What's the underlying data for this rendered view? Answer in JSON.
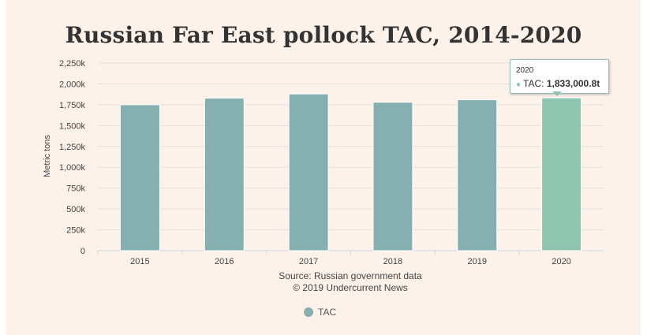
{
  "chart_data": {
    "type": "bar",
    "title": "Russian Far East pollock TAC, 2014-2020",
    "xlabel": "",
    "ylabel": "Metric tons",
    "categories": [
      "2015",
      "2016",
      "2017",
      "2018",
      "2019",
      "2020"
    ],
    "series": [
      {
        "name": "TAC",
        "values": [
          1750000,
          1830000,
          1880000,
          1780000,
          1810000,
          1833000.8
        ]
      }
    ],
    "ylim": [
      0,
      2250000
    ],
    "y_ticks": [
      "0",
      "250k",
      "500k",
      "750k",
      "1,000k",
      "1,250k",
      "1,500k",
      "1,750k",
      "2,000k",
      "2,250k"
    ],
    "grid": true,
    "legend_position": "bottom-center",
    "colors": {
      "bar": "#86b0b0",
      "highlight": "#8ec5b1",
      "background": "#fdf2ea",
      "grid": "#e6e0da"
    }
  },
  "credits": {
    "source": "Source: Russian government data",
    "copyright": "© 2019 Undercurrent News"
  },
  "tooltip": {
    "year": "2020",
    "series_label": "TAC:",
    "value": "1,833,000.8t"
  }
}
